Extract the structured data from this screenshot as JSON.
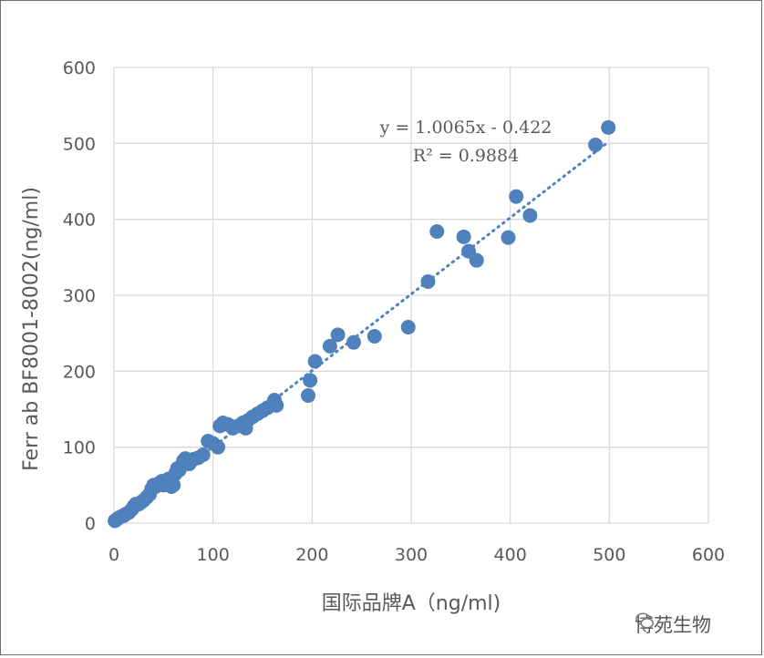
{
  "chart_data": {
    "type": "scatter",
    "xlabel": "国际品牌A（ng/ml)",
    "ylabel": "Ferr ab BF8001-8002(ng/ml)",
    "xlim": [
      0,
      600
    ],
    "ylim": [
      0,
      600
    ],
    "xticks": [
      "0",
      "100",
      "200",
      "300",
      "400",
      "500",
      "600"
    ],
    "yticks": [
      "0",
      "100",
      "200",
      "300",
      "400",
      "500",
      "600"
    ],
    "grid": true,
    "marker_color": "#4f81bd",
    "trendline": {
      "type": "linear",
      "slope": 1.0065,
      "intercept": -0.422,
      "style": "dotted",
      "equation": "y = 1.0065x - 0.422",
      "r_squared": "R² = 0.9884"
    },
    "points": [
      [
        1,
        3
      ],
      [
        3,
        5
      ],
      [
        5,
        7
      ],
      [
        8,
        9
      ],
      [
        10,
        10
      ],
      [
        12,
        12
      ],
      [
        15,
        14
      ],
      [
        18,
        18
      ],
      [
        20,
        22
      ],
      [
        22,
        25
      ],
      [
        25,
        25
      ],
      [
        28,
        28
      ],
      [
        30,
        30
      ],
      [
        33,
        34
      ],
      [
        36,
        38
      ],
      [
        38,
        45
      ],
      [
        40,
        50
      ],
      [
        42,
        48
      ],
      [
        45,
        52
      ],
      [
        48,
        55
      ],
      [
        50,
        50
      ],
      [
        52,
        56
      ],
      [
        55,
        58
      ],
      [
        58,
        48
      ],
      [
        60,
        50
      ],
      [
        62,
        65
      ],
      [
        64,
        72
      ],
      [
        66,
        70
      ],
      [
        68,
        75
      ],
      [
        70,
        82
      ],
      [
        72,
        85
      ],
      [
        74,
        80
      ],
      [
        76,
        78
      ],
      [
        78,
        82
      ],
      [
        80,
        84
      ],
      [
        85,
        86
      ],
      [
        90,
        90
      ],
      [
        95,
        108
      ],
      [
        100,
        105
      ],
      [
        105,
        100
      ],
      [
        107,
        128
      ],
      [
        110,
        132
      ],
      [
        115,
        130
      ],
      [
        120,
        125
      ],
      [
        125,
        128
      ],
      [
        130,
        132
      ],
      [
        133,
        125
      ],
      [
        135,
        135
      ],
      [
        140,
        140
      ],
      [
        145,
        144
      ],
      [
        150,
        148
      ],
      [
        155,
        152
      ],
      [
        160,
        156
      ],
      [
        162,
        162
      ],
      [
        164,
        155
      ],
      [
        196,
        168
      ],
      [
        198,
        188
      ],
      [
        203,
        213
      ],
      [
        218,
        233
      ],
      [
        226,
        248
      ],
      [
        242,
        238
      ],
      [
        263,
        246
      ],
      [
        297,
        258
      ],
      [
        317,
        318
      ],
      [
        326,
        384
      ],
      [
        353,
        377
      ],
      [
        358,
        358
      ],
      [
        366,
        346
      ],
      [
        398,
        376
      ],
      [
        406,
        430
      ],
      [
        420,
        405
      ],
      [
        486,
        498
      ],
      [
        499,
        521
      ]
    ]
  },
  "watermark": {
    "text": "博苑生物",
    "icon": "wechat-icon"
  }
}
